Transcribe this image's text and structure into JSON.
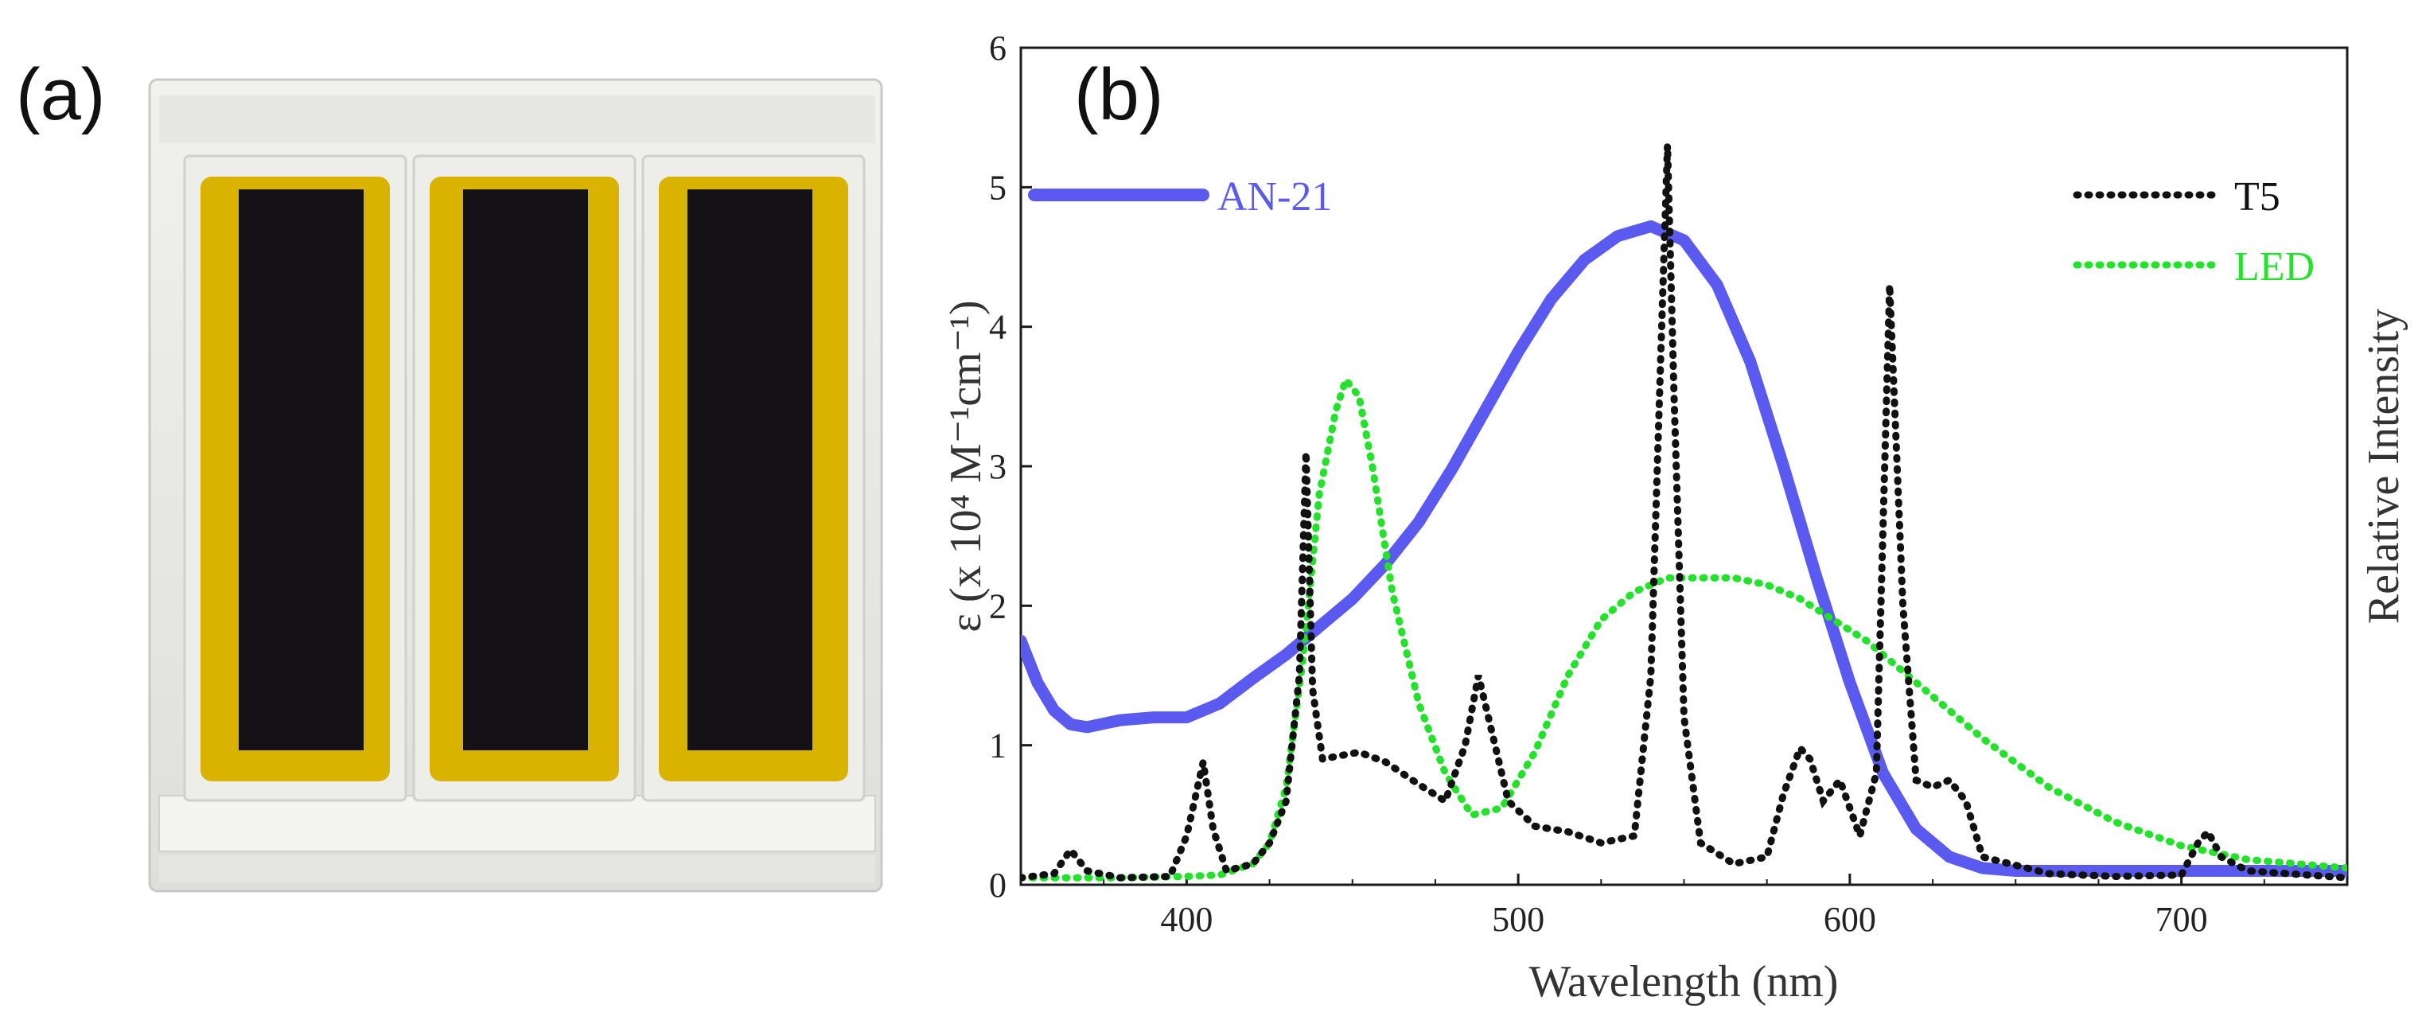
{
  "panel_a": {
    "label": "(a)",
    "description_icon": "photo-of-three-dye-sensitized-solar-cells"
  },
  "chart_data": {
    "type": "line",
    "panel_label": "(b)",
    "xlabel": "Wavelength (nm)",
    "ylabel_left": "ε (x 10⁴ M⁻¹cm⁻¹)",
    "ylabel_right": "Relative Intensity",
    "xlim": [
      350,
      750
    ],
    "ylim": [
      0,
      6
    ],
    "xticks": [
      400,
      500,
      600,
      700
    ],
    "yticks": [
      0,
      1,
      2,
      3,
      4,
      5,
      6
    ],
    "legend": [
      {
        "name": "AN-21",
        "color": "#5a5af0",
        "style": "solid",
        "position": "top-left"
      },
      {
        "name": "T5",
        "color": "#111111",
        "style": "dotted",
        "position": "top-right"
      },
      {
        "name": "LED",
        "color": "#22e22a",
        "style": "dotted",
        "position": "top-right"
      }
    ],
    "series": [
      {
        "name": "AN-21",
        "x": [
          350,
          355,
          360,
          365,
          370,
          380,
          390,
          400,
          410,
          420,
          430,
          440,
          450,
          460,
          470,
          480,
          490,
          500,
          510,
          520,
          530,
          540,
          550,
          560,
          570,
          580,
          590,
          600,
          610,
          620,
          630,
          640,
          650,
          660,
          680,
          700,
          720,
          750
        ],
        "values": [
          1.75,
          1.45,
          1.25,
          1.15,
          1.13,
          1.18,
          1.2,
          1.2,
          1.3,
          1.48,
          1.65,
          1.85,
          2.05,
          2.3,
          2.6,
          2.98,
          3.4,
          3.82,
          4.2,
          4.48,
          4.65,
          4.72,
          4.62,
          4.3,
          3.75,
          3.0,
          2.2,
          1.45,
          0.8,
          0.4,
          0.2,
          0.12,
          0.1,
          0.1,
          0.1,
          0.1,
          0.1,
          0.1
        ]
      },
      {
        "name": "T5",
        "x": [
          350,
          360,
          365,
          370,
          380,
          395,
          400,
          405,
          408,
          412,
          420,
          425,
          430,
          434,
          436,
          438,
          441,
          445,
          452,
          460,
          470,
          478,
          484,
          488,
          492,
          497,
          505,
          515,
          525,
          535,
          540,
          543,
          545,
          547,
          550,
          555,
          565,
          575,
          580,
          585,
          588,
          592,
          597,
          603,
          608,
          612,
          616,
          620,
          625,
          630,
          635,
          640,
          660,
          680,
          700,
          705,
          708,
          712,
          720,
          750
        ],
        "values": [
          0.05,
          0.08,
          0.25,
          0.1,
          0.05,
          0.06,
          0.35,
          0.88,
          0.4,
          0.1,
          0.15,
          0.3,
          0.6,
          1.5,
          3.1,
          1.4,
          0.9,
          0.92,
          0.95,
          0.88,
          0.72,
          0.6,
          1.0,
          1.5,
          1.1,
          0.6,
          0.42,
          0.38,
          0.3,
          0.35,
          1.5,
          3.8,
          5.3,
          3.5,
          1.2,
          0.3,
          0.15,
          0.2,
          0.65,
          0.98,
          0.9,
          0.6,
          0.75,
          0.35,
          0.8,
          4.3,
          2.0,
          0.75,
          0.7,
          0.75,
          0.6,
          0.2,
          0.08,
          0.06,
          0.07,
          0.3,
          0.38,
          0.2,
          0.1,
          0.05
        ]
      },
      {
        "name": "LED",
        "x": [
          350,
          380,
          400,
          410,
          420,
          425,
          430,
          435,
          440,
          445,
          448,
          452,
          456,
          462,
          470,
          478,
          486,
          495,
          505,
          515,
          525,
          535,
          545,
          555,
          565,
          575,
          585,
          595,
          605,
          615,
          625,
          640,
          660,
          680,
          700,
          720,
          750
        ],
        "values": [
          0.05,
          0.05,
          0.06,
          0.07,
          0.15,
          0.3,
          0.7,
          1.6,
          2.8,
          3.4,
          3.62,
          3.5,
          3.0,
          2.1,
          1.3,
          0.8,
          0.5,
          0.55,
          0.95,
          1.5,
          1.9,
          2.1,
          2.2,
          2.2,
          2.2,
          2.15,
          2.05,
          1.9,
          1.75,
          1.55,
          1.35,
          1.05,
          0.7,
          0.45,
          0.28,
          0.18,
          0.12
        ]
      }
    ]
  }
}
